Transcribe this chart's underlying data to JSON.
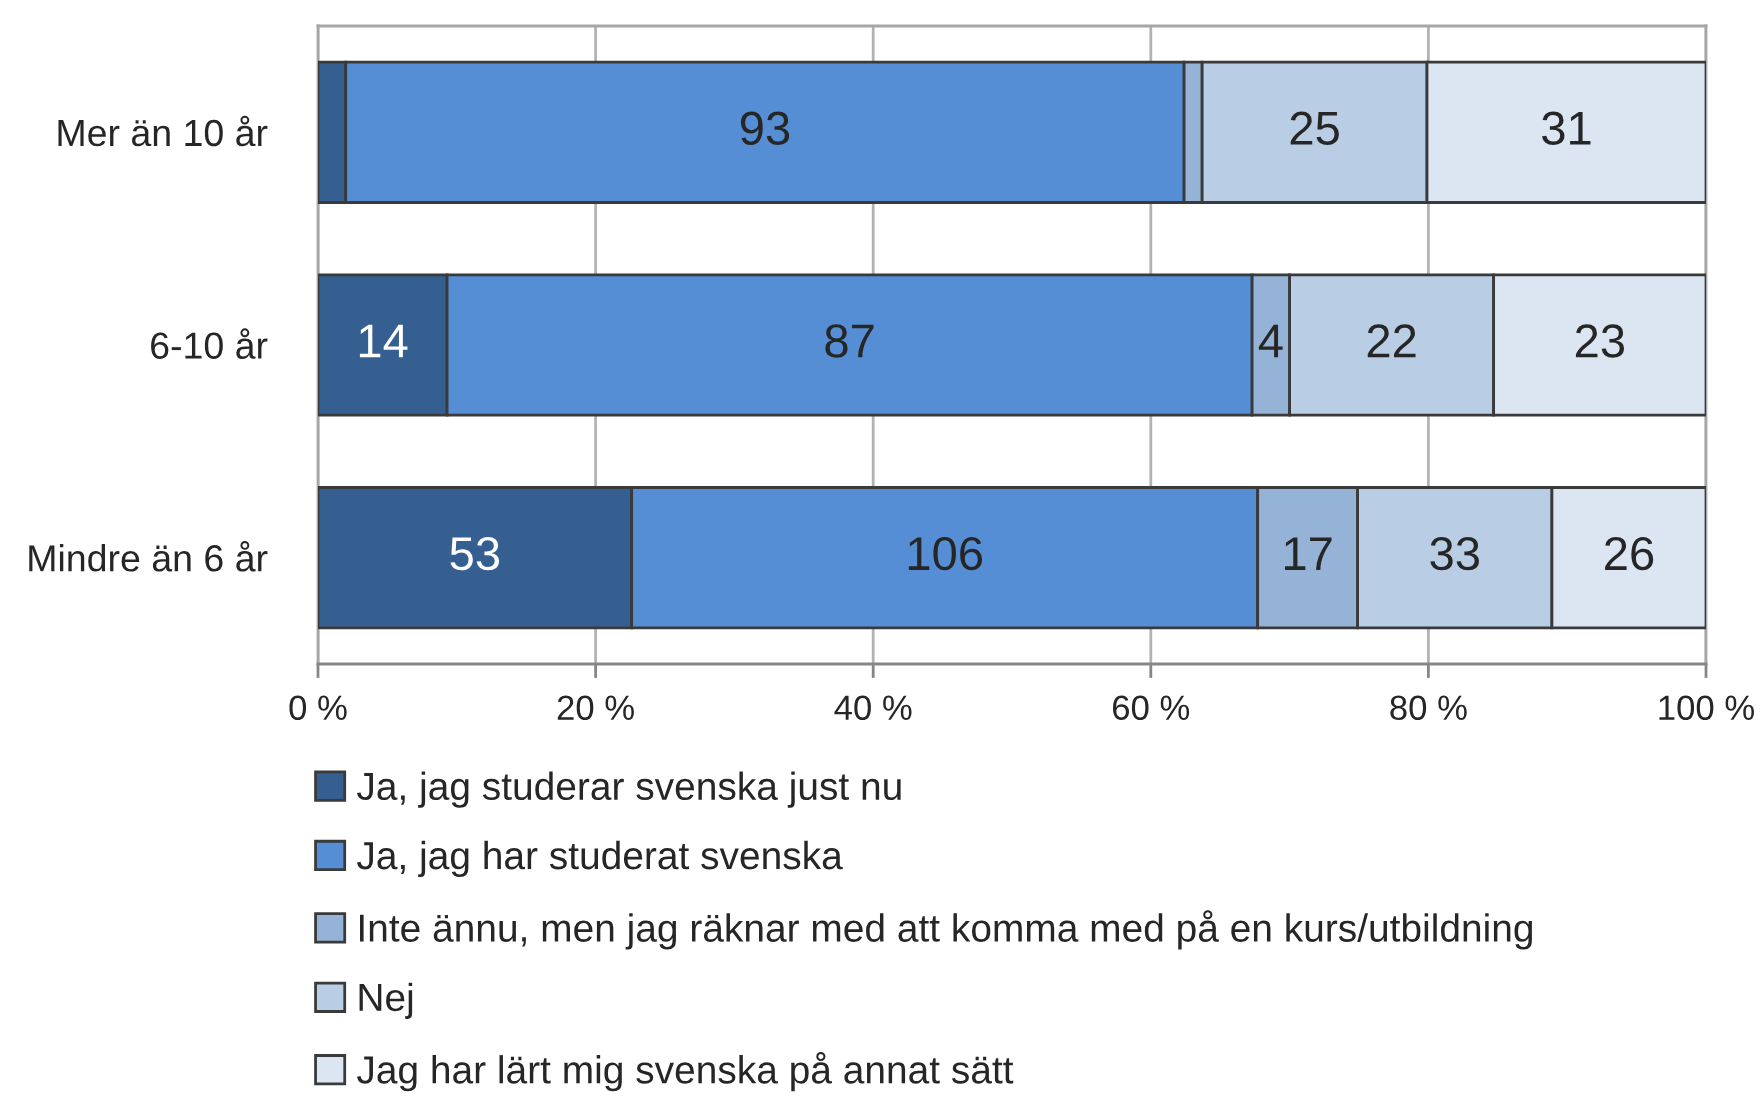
{
  "chart_data": {
    "type": "bar",
    "orientation": "horizontal",
    "stacked": true,
    "categories": [
      "Mer än 10 år",
      "6-10 år",
      "Mindre än 6 år"
    ],
    "series": [
      {
        "name": "Ja, jag studerar svenska just nu",
        "color": "#365f91",
        "values": [
          2.0,
          9.3,
          22.6
        ]
      },
      {
        "name": "Ja, jag har studerat svenska",
        "color": "#558ed5",
        "values": [
          60.4,
          58.0,
          45.1
        ]
      },
      {
        "name": "Inte ännu, men jag räknar med att komma med på en kurs/utbildning",
        "color": "#95b3d7",
        "values": [
          1.3,
          2.7,
          7.2
        ]
      },
      {
        "name": "Nej",
        "color": "#b9cde5",
        "values": [
          16.2,
          14.7,
          14.0
        ]
      },
      {
        "name": "Jag har lärt mig svenska på annat sätt",
        "color": "#dce6f2",
        "values": [
          20.1,
          15.3,
          11.1
        ]
      }
    ],
    "annotations": [
      "93",
      "25",
      "31",
      "14",
      "87",
      "4",
      "22",
      "23",
      "53",
      "106",
      "17",
      "33",
      "26"
    ],
    "xlim": [
      0,
      100
    ],
    "xticks": [
      {
        "value": 0,
        "label": "0 %"
      },
      {
        "value": 20,
        "label": "20 %"
      },
      {
        "value": 40,
        "label": "40 %"
      },
      {
        "value": 60,
        "label": "60 %"
      },
      {
        "value": 80,
        "label": "80 %"
      },
      {
        "value": 100,
        "label": "100 %"
      }
    ],
    "grid": "x",
    "legend": "bottom"
  }
}
